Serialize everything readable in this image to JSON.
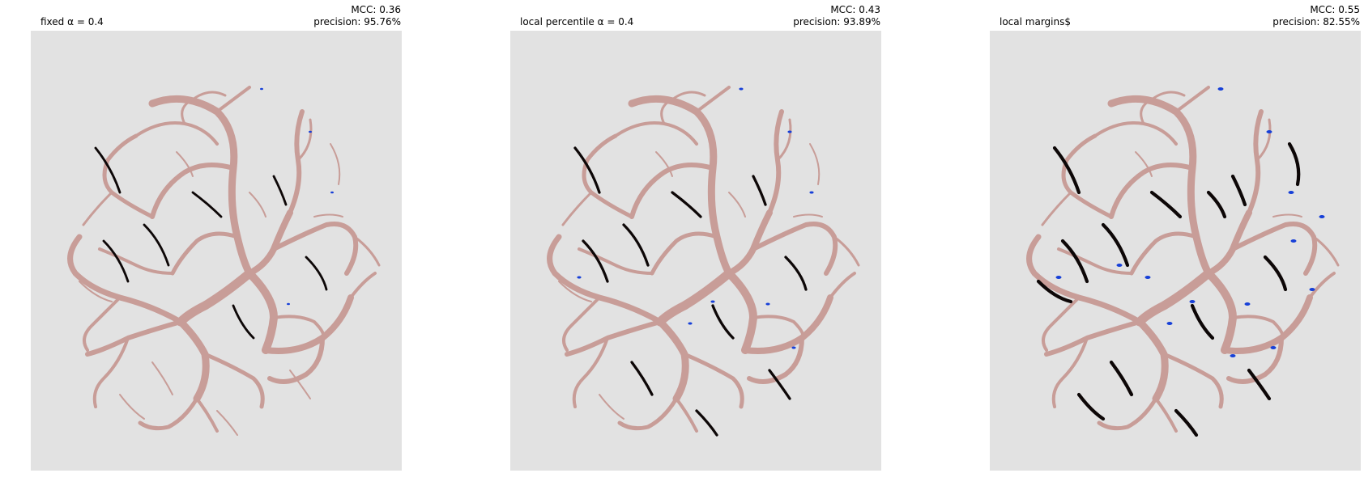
{
  "panels": [
    {
      "title_left": "fixed α = 0.4",
      "mcc": "MCC: 0.36",
      "precision": "precision: 95.76%",
      "style": {
        "black": 0.45,
        "blue": 0.25
      }
    },
    {
      "title_left": "local percentile α = 0.4",
      "mcc": "MCC: 0.43",
      "precision": "precision: 93.89%",
      "style": {
        "black": 0.6,
        "blue": 0.55
      }
    },
    {
      "title_left": "local margins$",
      "mcc": "MCC: 0.55",
      "precision": "precision: 82.55%",
      "style": {
        "black": 0.9,
        "blue": 1.0
      }
    }
  ],
  "colors": {
    "background": "#e2e2e2",
    "vessel": "#c89d98",
    "true_positive": "#0d0707",
    "false_positive": "#1740d8"
  }
}
